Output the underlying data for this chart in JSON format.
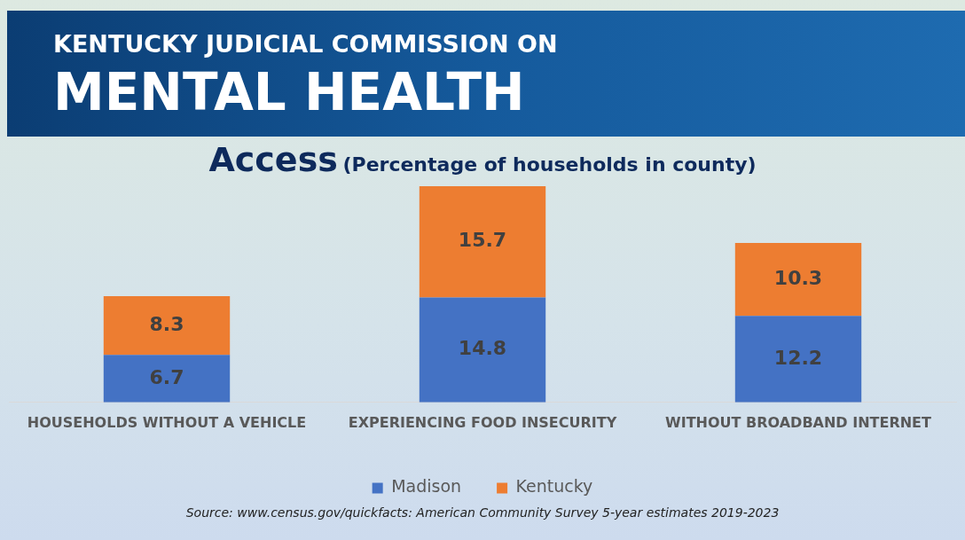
{
  "chart_data": {
    "type": "bar",
    "title": "Access",
    "subtitle": "(Percentage of households in county)",
    "categories": [
      "HOUSEHOLDS WITHOUT A VEHICLE",
      "EXPERIENCING FOOD INSECURITY",
      "WITHOUT BROADBAND INTERNET"
    ],
    "series": [
      {
        "name": "Madison",
        "color": "#4472c4",
        "values": [
          6.7,
          14.8,
          12.2
        ]
      },
      {
        "name": "Kentucky",
        "color": "#ed7d31",
        "values": [
          8.3,
          15.7,
          10.3
        ]
      }
    ],
    "stacked": true,
    "data_labels": true,
    "legend": "bottom",
    "grid": false,
    "tick_labels": "x",
    "annotations": [
      "KENTUCKY JUDICIAL COMMISSION ON",
      "MENTAL HEALTH",
      "Source: www.census.gov/quickfacts: American Community Survey 5-year estimates 2019-2023"
    ]
  }
}
